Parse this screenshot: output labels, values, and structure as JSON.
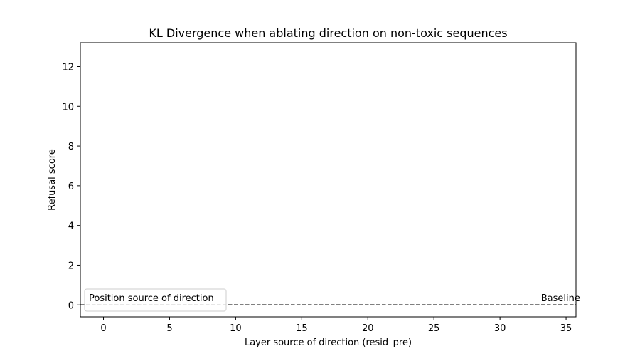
{
  "chart_data": {
    "type": "line",
    "title": "KL Divergence when ablating direction on non-toxic sequences",
    "xlabel": "Layer source of direction (resid_pre)",
    "ylabel": "Refusal score",
    "xlim": [
      -1.75,
      35.75
    ],
    "ylim": [
      -0.6,
      13.2
    ],
    "xticks": [
      0,
      5,
      10,
      15,
      20,
      25,
      30,
      35
    ],
    "yticks": [
      0,
      2,
      4,
      6,
      8,
      10,
      12
    ],
    "grid": false,
    "series": [],
    "reference_lines": [
      {
        "orientation": "horizontal",
        "y": 0,
        "style": "dashed",
        "color": "#000000"
      }
    ],
    "annotations": [
      {
        "text": "Baseline",
        "x": 33.1,
        "y": 0.3
      }
    ],
    "legend": {
      "title": "Position source of direction",
      "placement": "lower-left",
      "entries": []
    }
  }
}
